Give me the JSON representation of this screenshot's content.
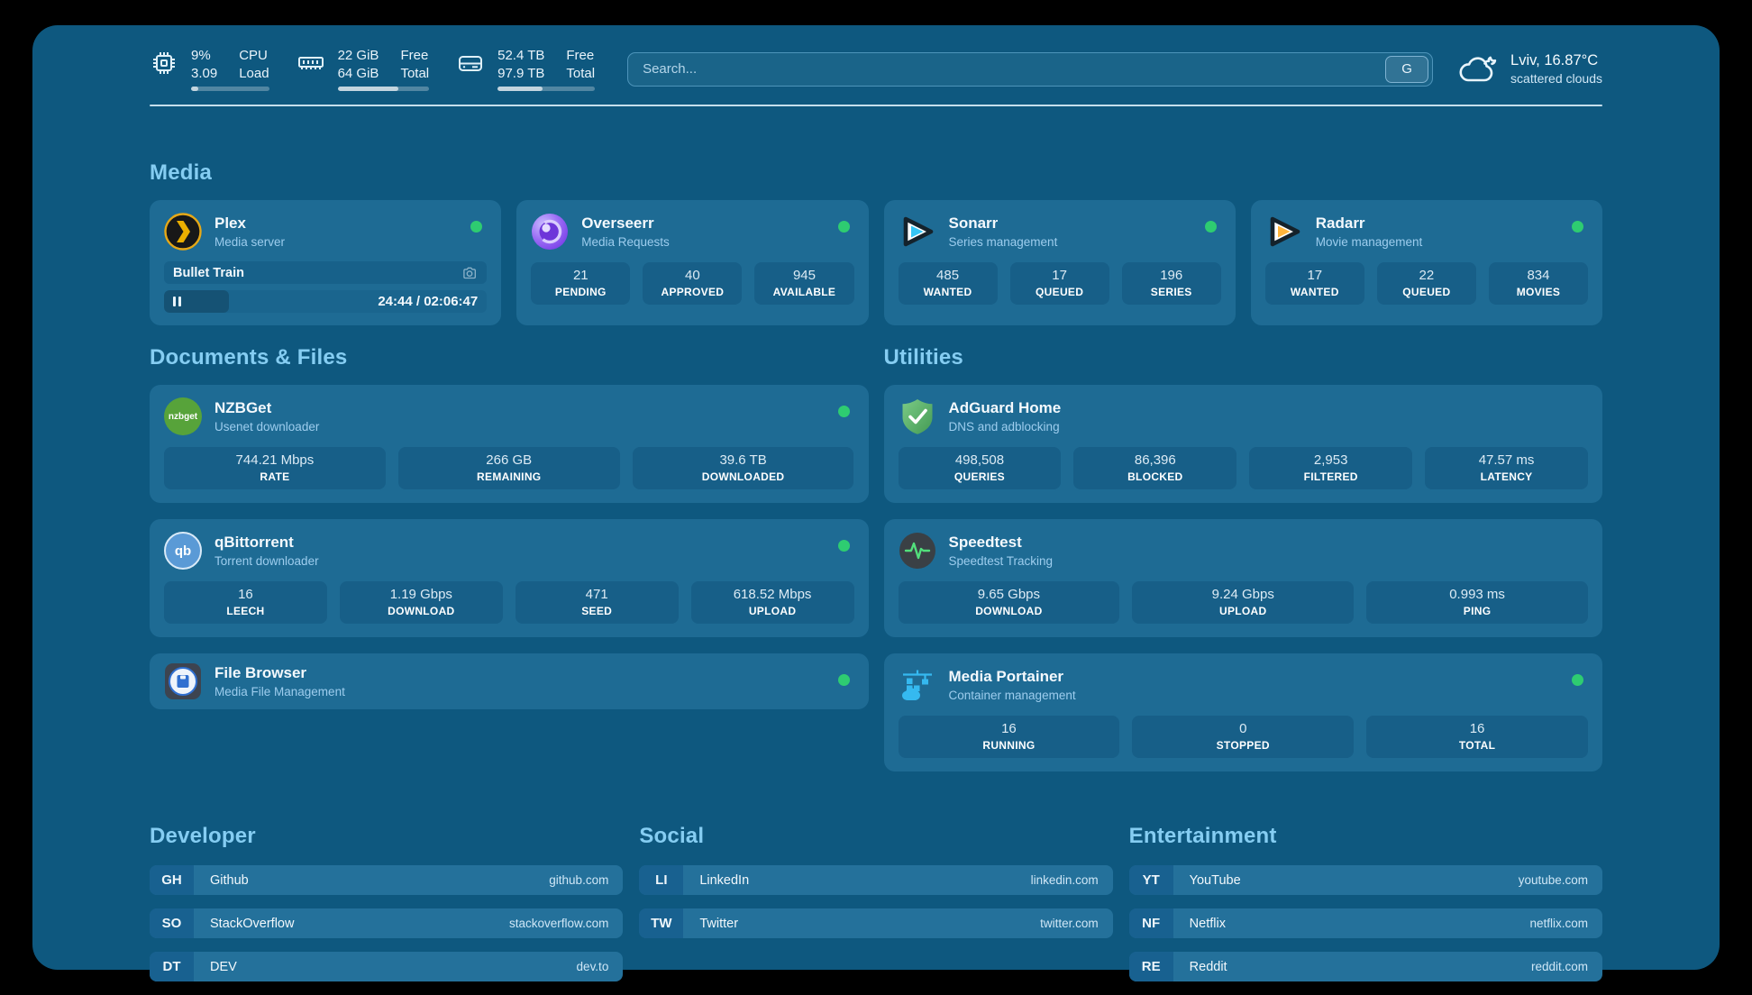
{
  "colors": {
    "status_online": "#2ecc71",
    "accent_heading": "#85cdf2"
  },
  "topbar": {
    "cpu": {
      "values": [
        "9%",
        "3.09"
      ],
      "labels": [
        "CPU",
        "Load"
      ],
      "percent": 9
    },
    "memory": {
      "values": [
        "22 GiB",
        "64 GiB"
      ],
      "labels": [
        "Free",
        "Total"
      ],
      "percent": 66
    },
    "storage": {
      "values": [
        "52.4 TB",
        "97.9 TB"
      ],
      "labels": [
        "Free",
        "Total"
      ],
      "percent": 46
    },
    "search": {
      "placeholder": "Search...",
      "engine": "G"
    },
    "weather": {
      "location_temp": "Lviv, 16.87°C",
      "condition": "scattered clouds"
    }
  },
  "media": {
    "title": "Media",
    "plex": {
      "name": "Plex",
      "subtitle": "Media server",
      "now_playing": "Bullet Train",
      "time": "24:44 / 02:06:47",
      "progress_percent": 20
    },
    "overseerr": {
      "name": "Overseerr",
      "subtitle": "Media Requests",
      "stats": [
        {
          "value": "21",
          "label": "PENDING"
        },
        {
          "value": "40",
          "label": "APPROVED"
        },
        {
          "value": "945",
          "label": "AVAILABLE"
        }
      ]
    },
    "sonarr": {
      "name": "Sonarr",
      "subtitle": "Series management",
      "stats": [
        {
          "value": "485",
          "label": "WANTED"
        },
        {
          "value": "17",
          "label": "QUEUED"
        },
        {
          "value": "196",
          "label": "SERIES"
        }
      ]
    },
    "radarr": {
      "name": "Radarr",
      "subtitle": "Movie management",
      "stats": [
        {
          "value": "17",
          "label": "WANTED"
        },
        {
          "value": "22",
          "label": "QUEUED"
        },
        {
          "value": "834",
          "label": "MOVIES"
        }
      ]
    }
  },
  "documents": {
    "title": "Documents & Files",
    "nzbget": {
      "name": "NZBGet",
      "subtitle": "Usenet downloader",
      "logo_text": "nzbget",
      "stats": [
        {
          "value": "744.21 Mbps",
          "label": "RATE"
        },
        {
          "value": "266 GB",
          "label": "REMAINING"
        },
        {
          "value": "39.6 TB",
          "label": "DOWNLOADED"
        }
      ]
    },
    "qbittorrent": {
      "name": "qBittorrent",
      "subtitle": "Torrent downloader",
      "logo_text": "qb",
      "stats": [
        {
          "value": "16",
          "label": "LEECH"
        },
        {
          "value": "1.19 Gbps",
          "label": "DOWNLOAD"
        },
        {
          "value": "471",
          "label": "SEED"
        },
        {
          "value": "618.52 Mbps",
          "label": "UPLOAD"
        }
      ]
    },
    "filebrowser": {
      "name": "File Browser",
      "subtitle": "Media File Management"
    }
  },
  "utilities": {
    "title": "Utilities",
    "adguard": {
      "name": "AdGuard Home",
      "subtitle": "DNS and adblocking",
      "stats": [
        {
          "value": "498,508",
          "label": "QUERIES"
        },
        {
          "value": "86,396",
          "label": "BLOCKED"
        },
        {
          "value": "2,953",
          "label": "FILTERED"
        },
        {
          "value": "47.57 ms",
          "label": "LATENCY"
        }
      ]
    },
    "speedtest": {
      "name": "Speedtest",
      "subtitle": "Speedtest Tracking",
      "stats": [
        {
          "value": "9.65 Gbps",
          "label": "DOWNLOAD"
        },
        {
          "value": "9.24 Gbps",
          "label": "UPLOAD"
        },
        {
          "value": "0.993 ms",
          "label": "PING"
        }
      ]
    },
    "portainer": {
      "name": "Media Portainer",
      "subtitle": "Container management",
      "stats": [
        {
          "value": "16",
          "label": "RUNNING"
        },
        {
          "value": "0",
          "label": "STOPPED"
        },
        {
          "value": "16",
          "label": "TOTAL"
        }
      ]
    }
  },
  "bookmarks": {
    "developer": {
      "title": "Developer",
      "items": [
        {
          "abbr": "GH",
          "name": "Github",
          "url": "github.com"
        },
        {
          "abbr": "SO",
          "name": "StackOverflow",
          "url": "stackoverflow.com"
        },
        {
          "abbr": "DT",
          "name": "DEV",
          "url": "dev.to"
        }
      ]
    },
    "social": {
      "title": "Social",
      "items": [
        {
          "abbr": "LI",
          "name": "LinkedIn",
          "url": "linkedin.com"
        },
        {
          "abbr": "TW",
          "name": "Twitter",
          "url": "twitter.com"
        }
      ]
    },
    "entertainment": {
      "title": "Entertainment",
      "items": [
        {
          "abbr": "YT",
          "name": "YouTube",
          "url": "youtube.com"
        },
        {
          "abbr": "NF",
          "name": "Netflix",
          "url": "netflix.com"
        },
        {
          "abbr": "RE",
          "name": "Reddit",
          "url": "reddit.com"
        }
      ]
    }
  }
}
